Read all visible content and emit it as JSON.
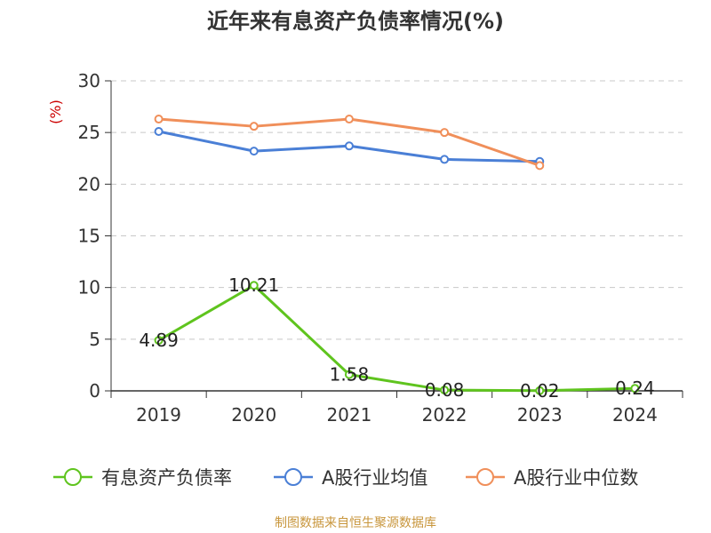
{
  "chart_data": {
    "type": "line",
    "title": "近年来有息资产负债率情况(%)",
    "ylabel": "(%)",
    "categories": [
      "2019",
      "2020",
      "2021",
      "2022",
      "2023",
      "2024"
    ],
    "ylim": [
      0,
      30
    ],
    "yticks": [
      0,
      5,
      10,
      15,
      20,
      25,
      30
    ],
    "grid": true,
    "legend_position": "bottom",
    "series": [
      {
        "name": "有息资产负债率",
        "color": "#5fc41e",
        "values": [
          4.89,
          10.21,
          1.58,
          0.08,
          0.02,
          0.24
        ],
        "data_labels": [
          "4.89",
          "10.21",
          "1.58",
          "0.08",
          "0.02",
          "0.24"
        ]
      },
      {
        "name": "A股行业均值",
        "color": "#4a7fd6",
        "values": [
          25.1,
          23.2,
          23.7,
          22.4,
          22.2,
          null
        ]
      },
      {
        "name": "A股行业中位数",
        "color": "#f08f5a",
        "values": [
          26.3,
          25.6,
          26.3,
          25.0,
          21.8,
          null
        ]
      }
    ]
  },
  "source_text": "制图数据来自恒生聚源数据库"
}
